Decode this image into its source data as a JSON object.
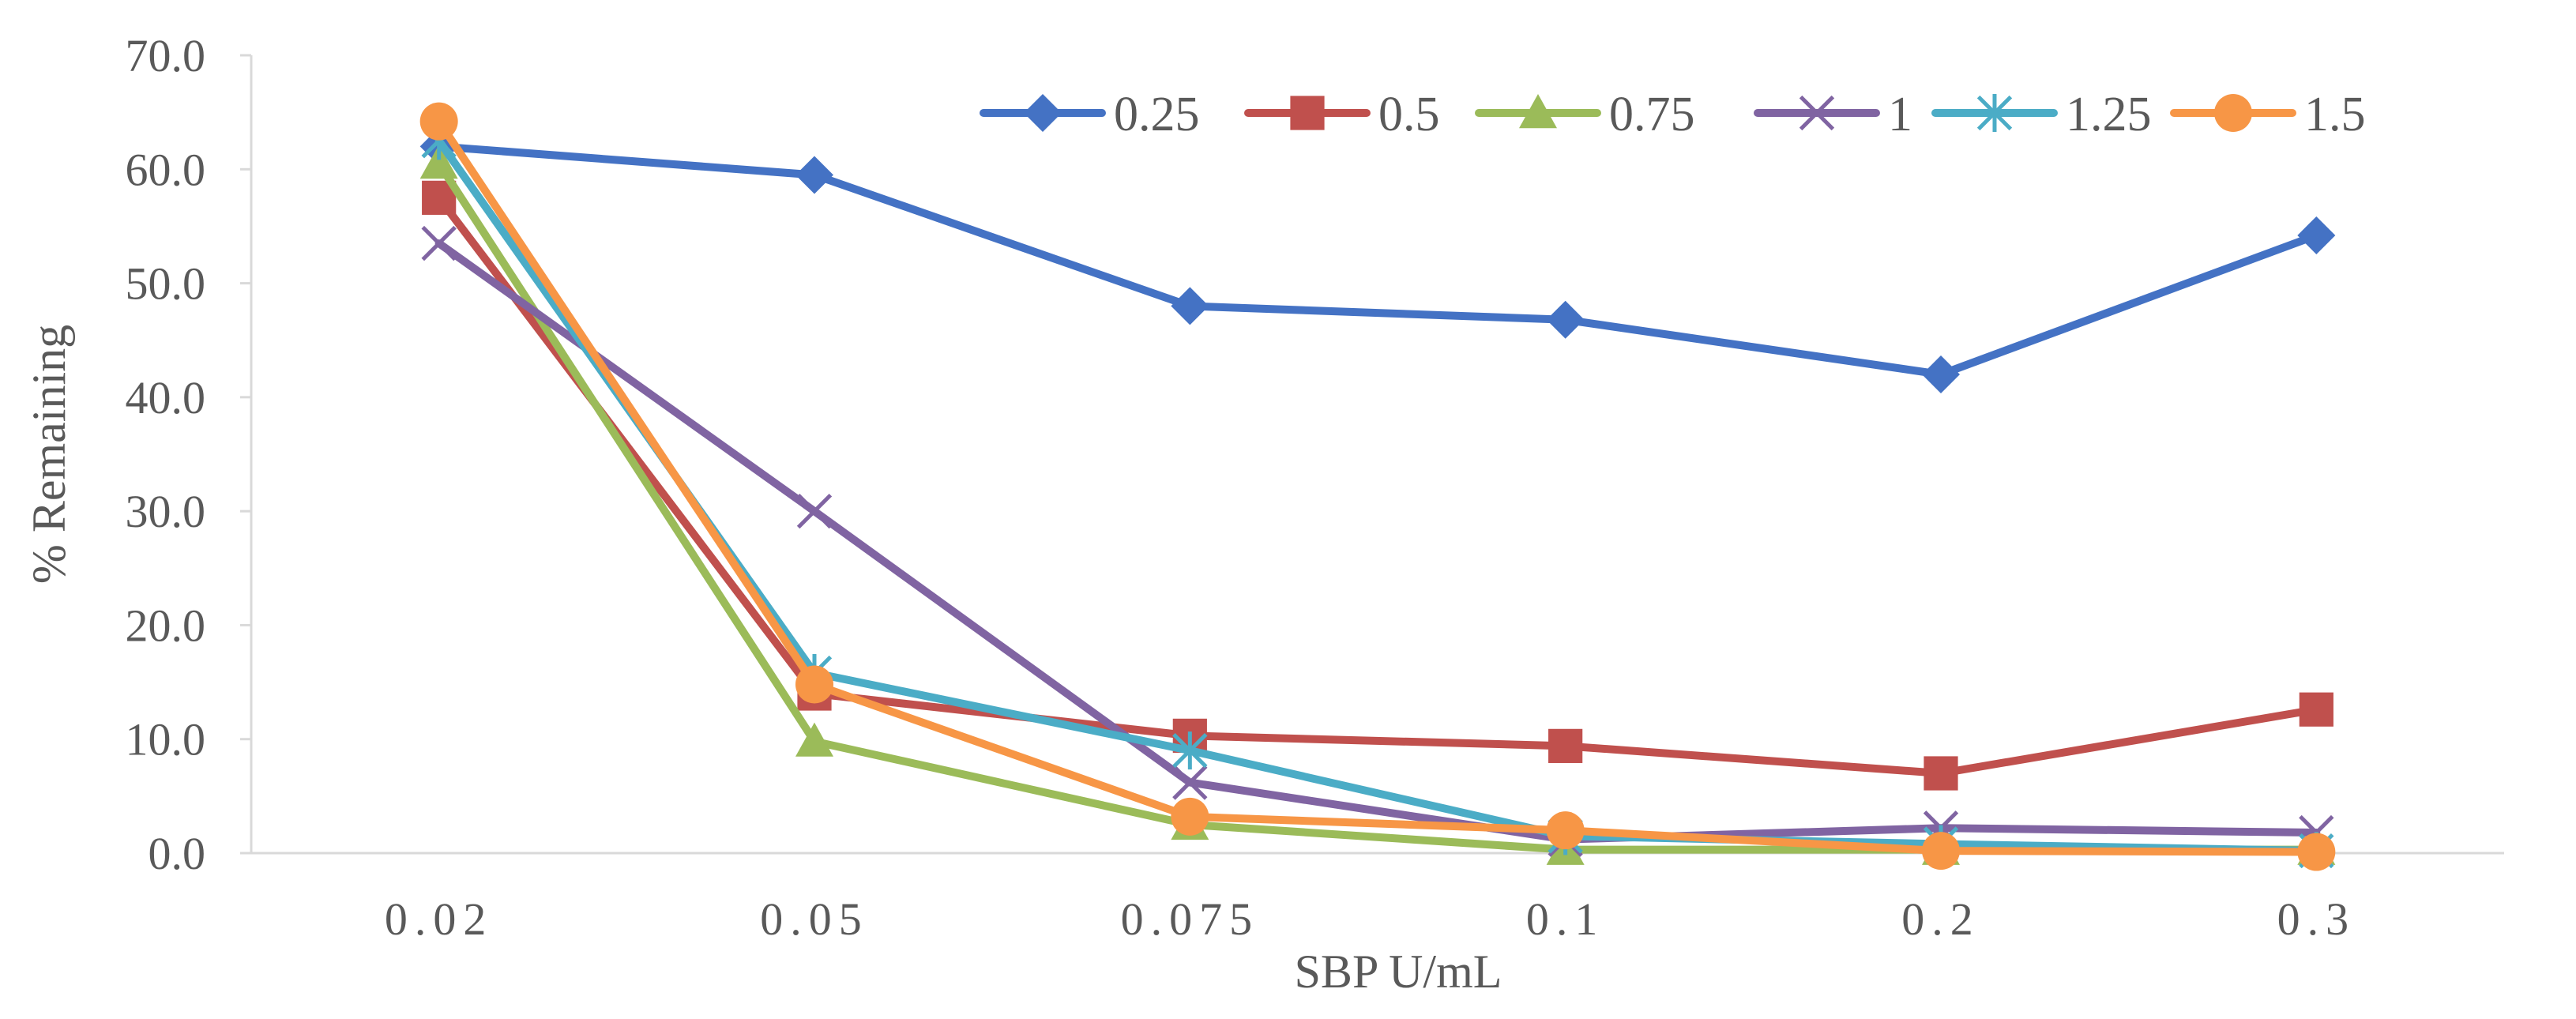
{
  "chart_data": {
    "type": "line",
    "title": "",
    "xlabel": "SBP U/mL",
    "ylabel": "% Remaining",
    "categories": [
      "0.02",
      "0.05",
      "0.075",
      "0.1",
      "0.2",
      "0.3"
    ],
    "ylim": [
      0,
      70
    ],
    "yticks": [
      "0.0",
      "10.0",
      "20.0",
      "30.0",
      "40.0",
      "50.0",
      "60.0",
      "70.0"
    ],
    "grid": false,
    "legend_position": "top-right",
    "series": [
      {
        "name": "0.25",
        "color": "#4472C4",
        "marker": "diamond",
        "values": [
          62.0,
          59.5,
          48.0,
          46.8,
          42.0,
          54.2
        ]
      },
      {
        "name": "0.5",
        "color": "#C0504D",
        "marker": "square",
        "values": [
          57.5,
          14.0,
          10.3,
          9.4,
          7.0,
          12.6
        ]
      },
      {
        "name": "0.75",
        "color": "#9BBB59",
        "marker": "triangle",
        "values": [
          60.5,
          9.8,
          2.5,
          0.3,
          0.3,
          0.3
        ]
      },
      {
        "name": "1",
        "color": "#8064A2",
        "marker": "x",
        "values": [
          53.5,
          30.0,
          6.2,
          1.2,
          2.2,
          1.8
        ]
      },
      {
        "name": "1.25",
        "color": "#4BACC6",
        "marker": "star",
        "values": [
          62.5,
          15.8,
          9.0,
          1.5,
          0.8,
          0.2
        ]
      },
      {
        "name": "1.5",
        "color": "#F79646",
        "marker": "circle",
        "values": [
          64.2,
          14.8,
          3.2,
          2.0,
          0.2,
          0.1
        ]
      }
    ],
    "axis_color": "#D9D9D9"
  }
}
